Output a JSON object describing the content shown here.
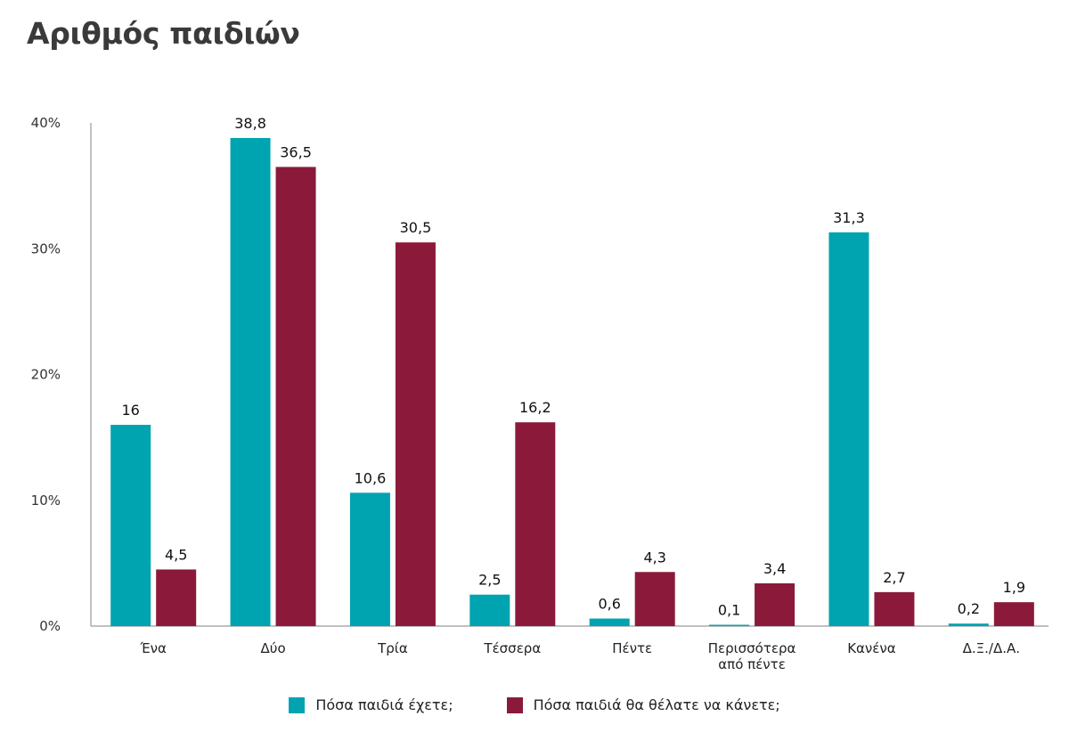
{
  "title": "Αριθμός παιδιών",
  "colors": {
    "series1": "#00a3b0",
    "series2": "#8b1a3a",
    "axis": "#9a9a9a"
  },
  "chart_data": {
    "type": "bar",
    "title": "Αριθμός παιδιών",
    "categories": [
      [
        "Ένα"
      ],
      [
        "Δύο"
      ],
      [
        "Τρία"
      ],
      [
        "Τέσσερα"
      ],
      [
        "Πέντε"
      ],
      [
        "Περισσότερα",
        "από πέντε"
      ],
      [
        "Κανένα"
      ],
      [
        "Δ.Ξ./Δ.Α."
      ]
    ],
    "series": [
      {
        "name": "Πόσα παιδιά έχετε;",
        "values": [
          16,
          38.8,
          10.6,
          2.5,
          0.6,
          0.1,
          31.3,
          0.2
        ],
        "labels": [
          "16",
          "38,8",
          "10,6",
          "2,5",
          "0,6",
          "0,1",
          "31,3",
          "0,2"
        ]
      },
      {
        "name": "Πόσα παιδιά θα θέλατε να κάνετε;",
        "values": [
          4.5,
          36.5,
          30.5,
          16.2,
          4.3,
          3.4,
          2.7,
          1.9
        ],
        "labels": [
          "4,5",
          "36,5",
          "30,5",
          "16,2",
          "4,3",
          "3,4",
          "2,7",
          "1,9"
        ]
      }
    ],
    "yticks": [
      "0%",
      "10%",
      "20%",
      "30%",
      "40%"
    ],
    "ylim": [
      0,
      40
    ],
    "xlabel": "",
    "ylabel": "",
    "grid": false,
    "legend_position": "bottom"
  }
}
